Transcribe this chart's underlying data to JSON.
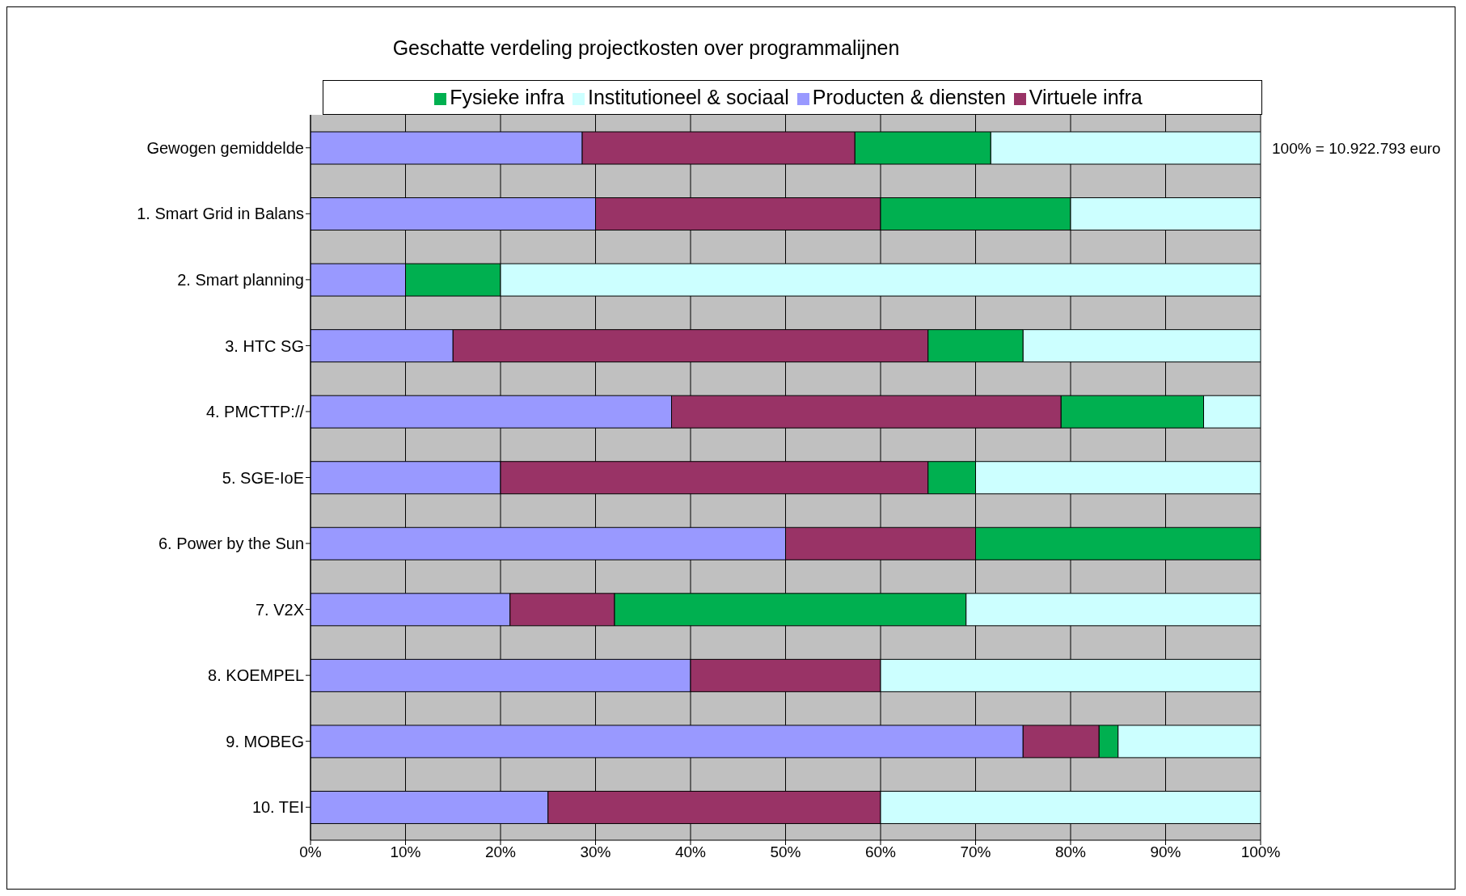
{
  "chart_data": {
    "type": "bar",
    "title": "Geschatte verdeling projectkosten over programmalijnen",
    "orientation": "horizontal",
    "stacked": true,
    "categories": [
      "Gewogen gemiddelde",
      "1. Smart Grid in Balans",
      "2. Smart planning",
      "3. HTC SG",
      "4. PMCTTP://",
      "5. SGE-IoE",
      "6. Power by the Sun",
      "7. V2X",
      "8. KOEMPEL",
      "9. MOBEG",
      "10. TEI"
    ],
    "series": [
      {
        "name": "Producten & diensten",
        "color": "#9999ff",
        "values": [
          28.6,
          30,
          10,
          15,
          38,
          20,
          50,
          21,
          40,
          75,
          25
        ]
      },
      {
        "name": "Virtuele infra",
        "color": "#993366",
        "values": [
          28.7,
          30,
          0,
          50,
          41,
          45,
          20,
          11,
          20,
          8,
          35
        ]
      },
      {
        "name": "Fysieke infra",
        "color": "#00b050",
        "values": [
          14.3,
          20,
          10,
          10,
          15,
          5,
          30,
          37,
          0,
          2,
          0
        ]
      },
      {
        "name": "Institutioneel & sociaal",
        "color": "#ccffff",
        "values": [
          28.4,
          20,
          80,
          25,
          6,
          30,
          0,
          31,
          40,
          15,
          40
        ]
      }
    ],
    "xlim": [
      0,
      100
    ],
    "xticks": [
      {
        "value": 0,
        "label": "0%"
      },
      {
        "value": 10,
        "label": "10%"
      },
      {
        "value": 20,
        "label": "20%"
      },
      {
        "value": 30,
        "label": "30%"
      },
      {
        "value": 40,
        "label": "40%"
      },
      {
        "value": 50,
        "label": "50%"
      },
      {
        "value": 60,
        "label": "60%"
      },
      {
        "value": 70,
        "label": "70%"
      },
      {
        "value": 80,
        "label": "80%"
      },
      {
        "value": 90,
        "label": "90%"
      },
      {
        "value": 100,
        "label": "100%"
      }
    ],
    "annotations": [
      {
        "text": "100% = 10.922.793 euro",
        "x": 100,
        "y": "Gewogen gemiddelde"
      }
    ],
    "grid": "x",
    "legend": "top"
  }
}
